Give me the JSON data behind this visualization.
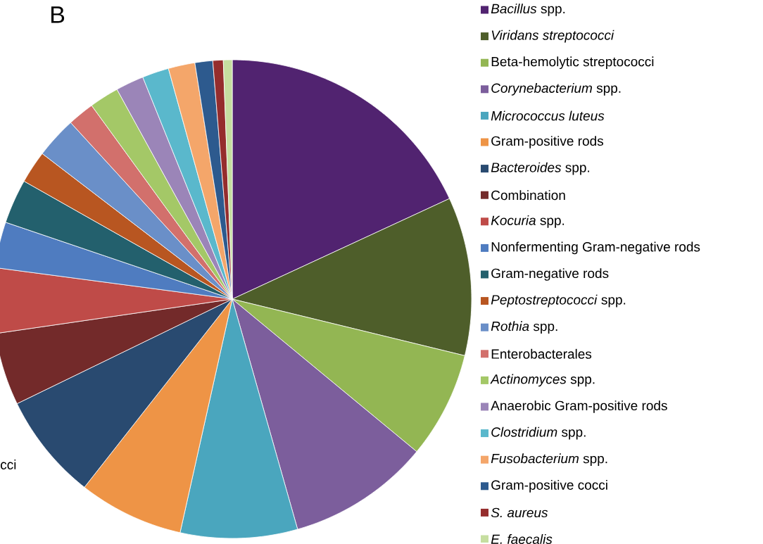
{
  "chart_data": {
    "type": "pie",
    "title": "B",
    "legend": "right",
    "categories": [
      "*Bacillus* spp.",
      "*Viridans streptococci*",
      "Beta-hemolytic streptococci",
      "*Corynebacterium* spp.",
      "*Micrococcus luteus*",
      "Gram-positive rods",
      "*Bacteroides* spp.",
      "Combination",
      "*Kocuria* spp.",
      "Nonfermenting Gram-negative rods",
      "Gram-negative rods",
      "*Peptostreptococci* spp.",
      "*Rothia* spp.",
      "Enterobacterales",
      "*Actinomyces* spp.",
      "Anaerobic Gram-positive rods",
      "*Clostridium* spp.",
      "*Fusobacterium* spp.",
      "Gram-positive cocci",
      "*S. aureus*",
      "*E. faecalis*"
    ],
    "values": [
      18.1,
      10.7,
      7.2,
      9.6,
      7.9,
      7.1,
      7.2,
      4.9,
      4.4,
      3.1,
      3.0,
      2.2,
      2.8,
      1.8,
      2.0,
      1.9,
      1.8,
      1.8,
      1.2,
      0.7,
      0.6
    ],
    "colors": [
      "#512370",
      "#4e5e2a",
      "#93b653",
      "#7c5e9c",
      "#4aa6be",
      "#ee9446",
      "#294a70",
      "#732a2a",
      "#bf4b48",
      "#4f7cc0",
      "#23606d",
      "#b85621",
      "#6a8fc8",
      "#d2706c",
      "#a4c867",
      "#9b85b8",
      "#5ab8cc",
      "#f4a66a",
      "#2d5a8e",
      "#952d2d",
      "#c6dea0"
    ],
    "annotations": [
      "cci"
    ]
  }
}
